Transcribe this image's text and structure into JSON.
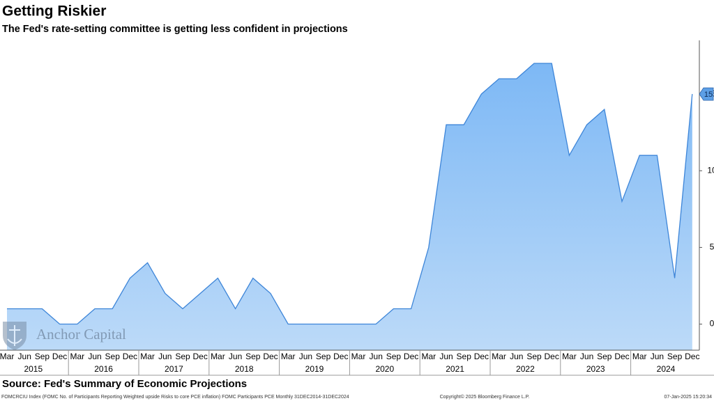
{
  "chart_data": {
    "type": "area",
    "title": "Getting Riskier",
    "subtitle": "The Fed's rate-setting committee is getting less confident in projections",
    "source": "Source: Fed's Summary of Economic Projections",
    "watermark": "Anchor Capital",
    "footer_left": "FOMCRCIU Index (FOMC No. of Participants Reporting Weighted upside Risks to core PCE inflation) FOMC Participants PCE  Monthly 31DEC2014-31DEC2024",
    "footer_center": "Copyright© 2025 Bloomberg Finance L.P.",
    "footer_right": "07-Jan-2025 15:20:34",
    "categories": [
      "Mar",
      "Jun",
      "Sep",
      "Dec",
      "Mar",
      "Jun",
      "Sep",
      "Dec",
      "Mar",
      "Jun",
      "Sep",
      "Dec",
      "Mar",
      "Jun",
      "Sep",
      "Dec",
      "Mar",
      "Jun",
      "Sep",
      "Dec",
      "Mar",
      "Jun",
      "Sep",
      "Dec",
      "Mar",
      "Jun",
      "Sep",
      "Dec",
      "Mar",
      "Jun",
      "Sep",
      "Dec",
      "Mar",
      "Jun",
      "Sep",
      "Dec",
      "Mar",
      "Jun",
      "Sep",
      "Dec"
    ],
    "year_labels": [
      "2015",
      "2016",
      "2017",
      "2018",
      "2019",
      "2020",
      "2021",
      "2022",
      "2023",
      "2024"
    ],
    "values": [
      1,
      1,
      1,
      0,
      0,
      1,
      1,
      3,
      4,
      2,
      1,
      2,
      3,
      1,
      3,
      2,
      0,
      0,
      0,
      0,
      0,
      0,
      1,
      1,
      5,
      13,
      13,
      15,
      16,
      16,
      17,
      17,
      11,
      13,
      14,
      8,
      11,
      11,
      3,
      15
    ],
    "color": "#3d85d8",
    "fill_top": "#7db8f5",
    "fill_bottom": "#bcdaf8",
    "ylim": [
      -1.7,
      18.5
    ],
    "yticks": [
      0,
      5,
      10,
      15
    ],
    "axis_side": "right"
  }
}
